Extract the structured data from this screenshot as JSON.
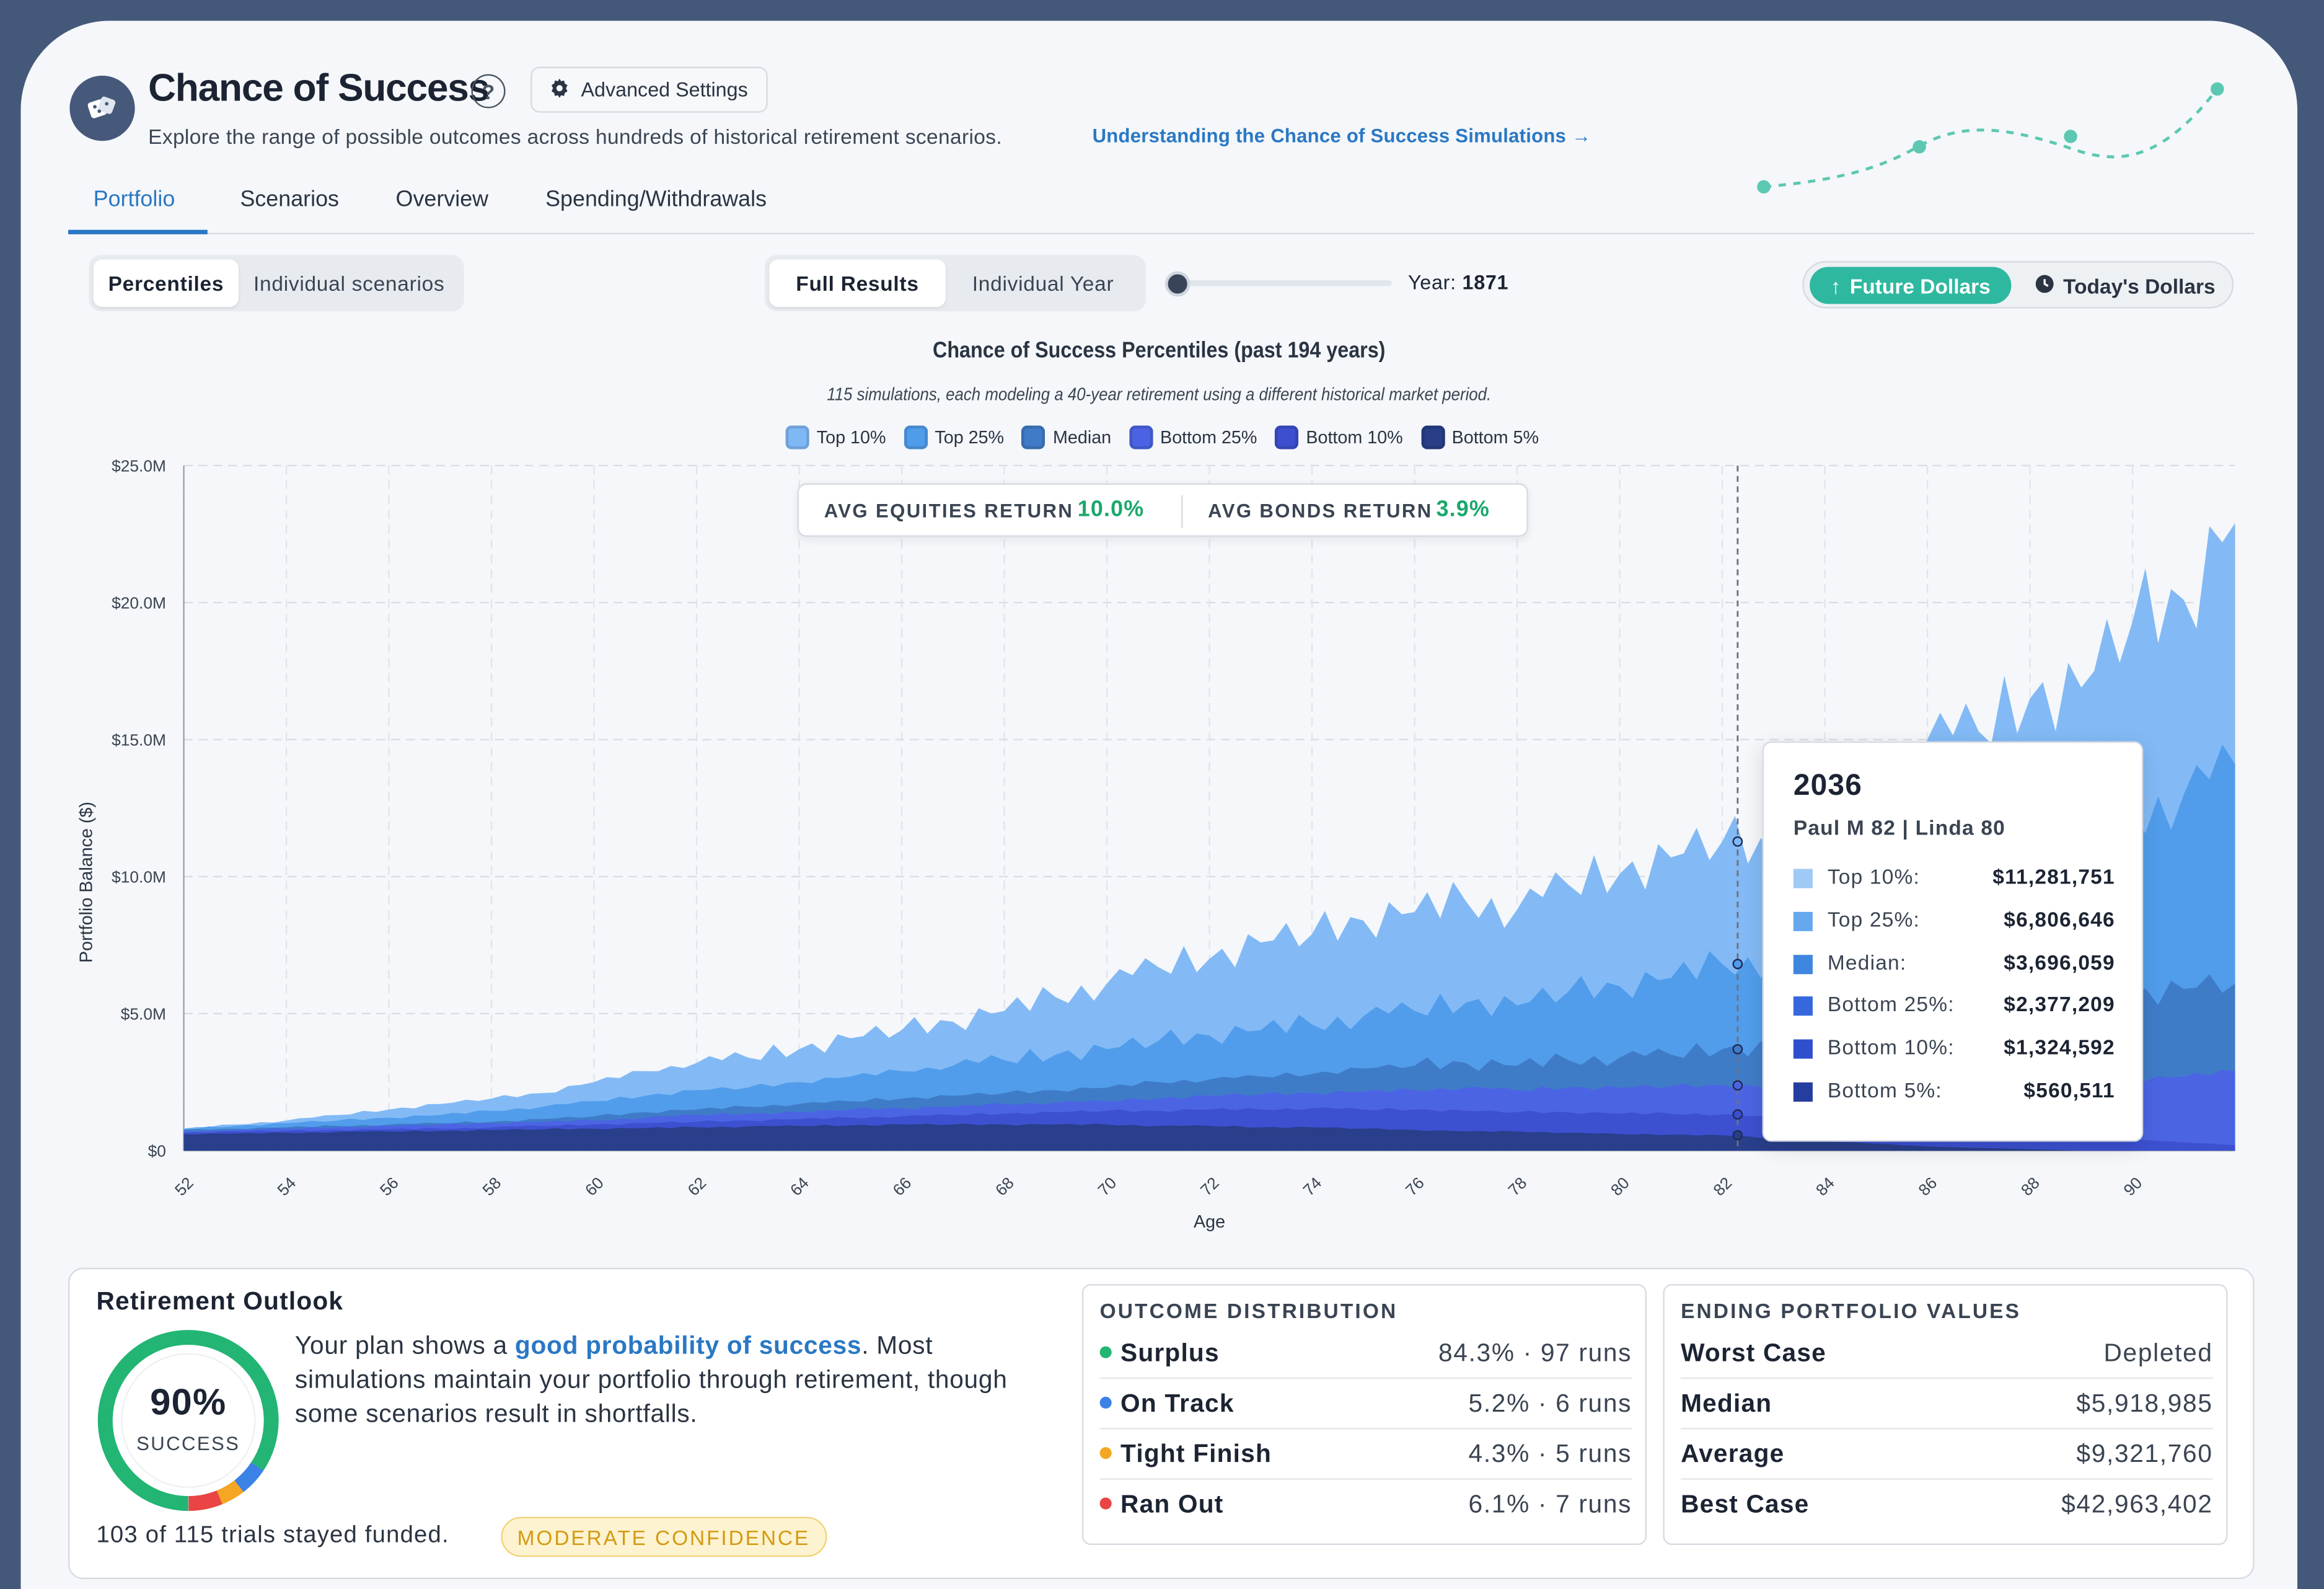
{
  "header": {
    "title": "Chance of Success",
    "help_icon": "?",
    "advanced_settings_label": "Advanced Settings",
    "subtitle": "Explore the range of possible outcomes across hundreds of historical retirement scenarios.",
    "link_text": "Understanding the Chance of Success Simulations →"
  },
  "tabs": [
    {
      "label": "Portfolio",
      "active": true
    },
    {
      "label": "Scenarios",
      "active": false
    },
    {
      "label": "Overview",
      "active": false
    },
    {
      "label": "Spending/Withdrawals",
      "active": false
    }
  ],
  "view_toggle": {
    "options": [
      "Percentiles",
      "Individual scenarios"
    ],
    "selected": "Percentiles"
  },
  "results_toggle": {
    "options": [
      "Full Results",
      "Individual Year"
    ],
    "selected": "Full Results"
  },
  "year_slider": {
    "label": "Year:",
    "value": "1871"
  },
  "dollars_toggle": {
    "options": [
      "Future Dollars",
      "Today's Dollars"
    ],
    "selected": "Future Dollars"
  },
  "colors": {
    "top10": "#7fb8f5",
    "top25": "#4f9ceb",
    "median": "#3f7bc6",
    "bottom25": "#4b63e3",
    "bottom10": "#3d4fcf",
    "bottom5": "#283f88",
    "accent": "#2a78c4",
    "teal": "#2fb8a0"
  },
  "chart_data": {
    "type": "area",
    "title": "Chance of Success Percentiles (past 194 years)",
    "subtitle": "115 simulations, each modeling a 40-year retirement using a different historical market period.",
    "xlabel": "Age",
    "ylabel": "Portfolio Balance ($)",
    "x_ticks": [
      "52",
      "54",
      "56",
      "58",
      "60",
      "62",
      "64",
      "66",
      "68",
      "70",
      "72",
      "74",
      "76",
      "78",
      "80",
      "82",
      "84",
      "86",
      "88",
      "90"
    ],
    "y_ticks": [
      "$0",
      "$5.0M",
      "$10.0M",
      "$15.0M",
      "$20.0M",
      "$25.0M"
    ],
    "xlim": [
      52,
      92
    ],
    "ylim": [
      0,
      25000000
    ],
    "legend_position": "top-center",
    "grid": true,
    "x": [
      52,
      53,
      54,
      55,
      56,
      57,
      58,
      59,
      60,
      61,
      62,
      63,
      64,
      65,
      66,
      67,
      68,
      69,
      70,
      71,
      72,
      73,
      74,
      75,
      76,
      77,
      78,
      79,
      80,
      81,
      82,
      83,
      84,
      85,
      86,
      87,
      88,
      89,
      90,
      91,
      92
    ],
    "series": [
      {
        "name": "Top 10%",
        "color_key": "top10",
        "values": [
          0.8,
          0.95,
          1.1,
          1.3,
          1.5,
          1.7,
          1.9,
          2.1,
          2.5,
          2.9,
          3.2,
          3.4,
          3.7,
          4.1,
          4.4,
          4.7,
          5.1,
          5.6,
          6.1,
          6.7,
          7.0,
          7.6,
          7.9,
          8.4,
          8.7,
          9.1,
          8.8,
          9.7,
          10.1,
          10.7,
          11.28,
          11.0,
          12.6,
          13.8,
          15.0,
          15.3,
          16.5,
          16.9,
          19.3,
          20.1,
          22.9
        ]
      },
      {
        "name": "Top 25%",
        "color_key": "top25",
        "values": [
          0.8,
          0.9,
          1.0,
          1.1,
          1.2,
          1.3,
          1.45,
          1.6,
          1.8,
          2.0,
          2.2,
          2.3,
          2.5,
          2.7,
          2.9,
          3.1,
          3.3,
          3.5,
          3.7,
          4.0,
          4.2,
          4.4,
          4.6,
          4.9,
          5.1,
          5.4,
          5.3,
          5.8,
          6.0,
          6.3,
          6.81,
          6.9,
          7.6,
          8.2,
          8.9,
          9.4,
          10.2,
          10.9,
          12.1,
          13.0,
          14.1
        ]
      },
      {
        "name": "Median",
        "color_key": "median",
        "values": [
          0.75,
          0.8,
          0.85,
          0.9,
          0.95,
          1.0,
          1.05,
          1.15,
          1.25,
          1.4,
          1.5,
          1.6,
          1.7,
          1.8,
          1.9,
          2.0,
          2.1,
          2.2,
          2.3,
          2.5,
          2.6,
          2.7,
          2.8,
          3.0,
          3.1,
          3.2,
          3.1,
          3.3,
          3.4,
          3.5,
          3.7,
          3.8,
          4.0,
          4.3,
          4.5,
          4.8,
          5.1,
          5.3,
          5.7,
          5.9,
          6.1
        ]
      },
      {
        "name": "Bottom 25%",
        "color_key": "bottom25",
        "values": [
          0.7,
          0.75,
          0.8,
          0.85,
          0.9,
          0.95,
          1.0,
          1.05,
          1.1,
          1.2,
          1.3,
          1.35,
          1.4,
          1.5,
          1.55,
          1.6,
          1.7,
          1.75,
          1.8,
          1.9,
          2.0,
          2.05,
          2.1,
          2.15,
          2.2,
          2.3,
          2.2,
          2.3,
          2.3,
          2.35,
          2.38,
          2.3,
          2.2,
          2.1,
          2.1,
          2.2,
          2.3,
          2.4,
          2.6,
          2.7,
          2.9
        ]
      },
      {
        "name": "Bottom 10%",
        "color_key": "bottom10",
        "values": [
          0.65,
          0.7,
          0.72,
          0.75,
          0.78,
          0.8,
          0.85,
          0.9,
          0.95,
          1.0,
          1.05,
          1.1,
          1.15,
          1.2,
          1.25,
          1.3,
          1.35,
          1.4,
          1.45,
          1.45,
          1.5,
          1.5,
          1.55,
          1.5,
          1.5,
          1.45,
          1.4,
          1.4,
          1.35,
          1.35,
          1.32,
          1.2,
          1.1,
          0.95,
          0.8,
          0.7,
          0.6,
          0.5,
          0.4,
          0.3,
          0.2
        ]
      },
      {
        "name": "Bottom 5%",
        "color_key": "bottom5",
        "values": [
          0.6,
          0.62,
          0.65,
          0.68,
          0.7,
          0.72,
          0.75,
          0.78,
          0.8,
          0.82,
          0.85,
          0.88,
          0.9,
          0.92,
          0.95,
          0.95,
          0.95,
          0.95,
          0.95,
          0.9,
          0.9,
          0.85,
          0.85,
          0.8,
          0.75,
          0.7,
          0.7,
          0.65,
          0.6,
          0.58,
          0.56,
          0.45,
          0.35,
          0.25,
          0.15,
          0.1,
          0.05,
          0.0,
          0.0,
          0.0,
          0.0
        ]
      }
    ],
    "hover_x": 82.3
  },
  "avg_returns": {
    "equities_label": "AVG EQUITIES RETURN",
    "equities_value": "10.0%",
    "bonds_label": "AVG BONDS RETURN",
    "bonds_value": "3.9%"
  },
  "tooltip": {
    "year": "2036",
    "names": "Paul M 82 | Linda 80",
    "rows": [
      {
        "label": "Top 10%:",
        "value": "$11,281,751",
        "color": "#9fcaf5"
      },
      {
        "label": "Top 25%:",
        "value": "$6,806,646",
        "color": "#65a8ee"
      },
      {
        "label": "Median:",
        "value": "$3,696,059",
        "color": "#3f86e0"
      },
      {
        "label": "Bottom 25%:",
        "value": "$2,377,209",
        "color": "#3568dd"
      },
      {
        "label": "Bottom 10%:",
        "value": "$1,324,592",
        "color": "#2f4fcf"
      },
      {
        "label": "Bottom 5%:",
        "value": "$560,511",
        "color": "#253d9e"
      }
    ]
  },
  "outlook": {
    "title": "Retirement Outlook",
    "percent": "90%",
    "ring_label": "SUCCESS",
    "text_before": "Your plan shows a ",
    "text_highlight": "good probability of success",
    "text_after": ". Most simulations maintain your portfolio through retirement, though some scenarios result in shortfalls.",
    "footer": "103 of 115 trials stayed funded.",
    "badge": "MODERATE CONFIDENCE",
    "ring_segments": [
      {
        "name": "Surplus",
        "fraction": 0.843,
        "color": "#22b573"
      },
      {
        "name": "On Track",
        "fraction": 0.052,
        "color": "#3b82e6"
      },
      {
        "name": "Tight Finish",
        "fraction": 0.043,
        "color": "#f5a623"
      },
      {
        "name": "Ran Out",
        "fraction": 0.061,
        "color": "#ea4444"
      }
    ]
  },
  "distribution": {
    "title": "OUTCOME DISTRIBUTION",
    "rows": [
      {
        "label": "Surplus",
        "value": "84.3% · 97 runs",
        "color": "#22b573"
      },
      {
        "label": "On Track",
        "value": "5.2% · 6 runs",
        "color": "#3b82e6"
      },
      {
        "label": "Tight Finish",
        "value": "4.3% · 5 runs",
        "color": "#f5a623"
      },
      {
        "label": "Ran Out",
        "value": "6.1% · 7 runs",
        "color": "#ea4444"
      }
    ]
  },
  "ending_values": {
    "title": "ENDING PORTFOLIO VALUES",
    "rows": [
      {
        "label": "Worst Case",
        "value": "Depleted"
      },
      {
        "label": "Median",
        "value": "$5,918,985"
      },
      {
        "label": "Average",
        "value": "$9,321,760"
      },
      {
        "label": "Best Case",
        "value": "$42,963,402"
      }
    ]
  }
}
